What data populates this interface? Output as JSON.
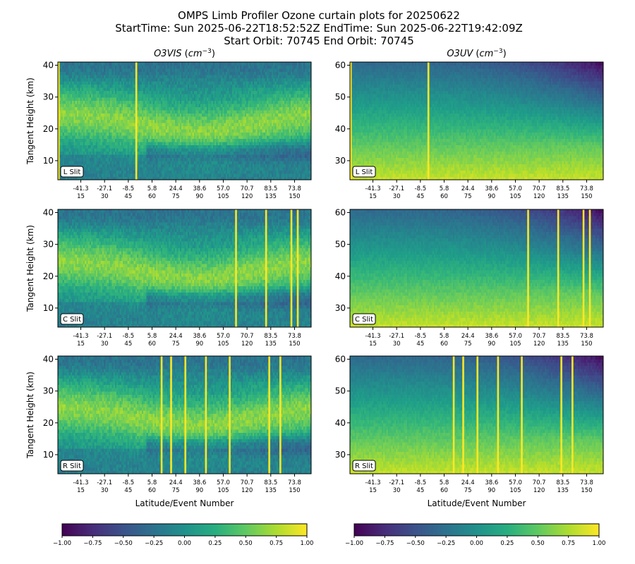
{
  "figure": {
    "title_lines": [
      "OMPS Limb Profiler Ozone curtain plots for 20250622",
      "StartTime: Sun 2025-06-22T18:52:52Z  EndTime: Sun 2025-06-22T19:42:09Z",
      "Start Orbit: 70745 End Orbit: 70745"
    ]
  },
  "colors": {
    "colormap": "viridis",
    "flag": "#fde725",
    "frame": "#000000"
  },
  "chart_data": [
    {
      "type": "heatmap",
      "title_main": "O3VIS",
      "title_unit_base": "cm",
      "title_unit_exp": "−3",
      "slit_label": "L Slit",
      "ylabel": "Tangent Height (km)",
      "xlabel": "",
      "ylim": [
        4,
        41
      ],
      "y_ticks": [
        10,
        20,
        30,
        40
      ],
      "x_ticks_lat": [
        "-41.3",
        "-27.1",
        "-8.5",
        "5.8",
        "24.4",
        "38.6",
        "57.0",
        "70.7",
        "83.5",
        "73.8"
      ],
      "x_ticks_event": [
        "15",
        "30",
        "45",
        "60",
        "75",
        "90",
        "105",
        "120",
        "135",
        "150"
      ],
      "flag_events": [
        1,
        50
      ],
      "crange": [
        -1,
        1
      ]
    },
    {
      "type": "heatmap",
      "title_main": "O3UV",
      "title_unit_base": "cm",
      "title_unit_exp": "−3",
      "slit_label": "L Slit",
      "ylabel": "",
      "xlabel": "",
      "ylim": [
        24,
        61
      ],
      "y_ticks": [
        30,
        40,
        50,
        60
      ],
      "x_ticks_lat": [
        "-41.3",
        "-27.1",
        "-8.5",
        "5.8",
        "24.4",
        "38.6",
        "57.0",
        "70.7",
        "83.5",
        "73.8"
      ],
      "x_ticks_event": [
        "15",
        "30",
        "45",
        "60",
        "75",
        "90",
        "105",
        "120",
        "135",
        "150"
      ],
      "flag_events": [
        1,
        50
      ],
      "crange": [
        -1,
        1
      ]
    },
    {
      "type": "heatmap",
      "title_main": "",
      "slit_label": "C Slit",
      "ylabel": "Tangent Height (km)",
      "xlabel": "",
      "ylim": [
        4,
        41
      ],
      "y_ticks": [
        10,
        20,
        30,
        40
      ],
      "x_ticks_lat": [
        "-41.3",
        "-27.1",
        "-8.5",
        "5.8",
        "24.4",
        "38.6",
        "57.0",
        "70.7",
        "83.5",
        "73.8"
      ],
      "x_ticks_event": [
        "15",
        "30",
        "45",
        "60",
        "75",
        "90",
        "105",
        "120",
        "135",
        "150"
      ],
      "flag_events": [
        113,
        132,
        148,
        152
      ],
      "crange": [
        -1,
        1
      ]
    },
    {
      "type": "heatmap",
      "title_main": "",
      "slit_label": "C Slit",
      "ylabel": "",
      "xlabel": "",
      "ylim": [
        24,
        61
      ],
      "y_ticks": [
        30,
        40,
        50,
        60
      ],
      "x_ticks_lat": [
        "-41.3",
        "-27.1",
        "-8.5",
        "5.8",
        "24.4",
        "38.6",
        "57.0",
        "70.7",
        "83.5",
        "73.8"
      ],
      "x_ticks_event": [
        "15",
        "30",
        "45",
        "60",
        "75",
        "90",
        "105",
        "120",
        "135",
        "150"
      ],
      "flag_events": [
        113,
        132,
        148,
        152
      ],
      "crange": [
        -1,
        1
      ]
    },
    {
      "type": "heatmap",
      "title_main": "",
      "slit_label": "R Slit",
      "ylabel": "Tangent Height (km)",
      "xlabel": "Latitude/Event Number",
      "ylim": [
        4,
        41
      ],
      "y_ticks": [
        10,
        20,
        30,
        40
      ],
      "x_ticks_lat": [
        "-41.3",
        "-27.1",
        "-8.5",
        "5.8",
        "24.4",
        "38.6",
        "57.0",
        "70.7",
        "83.5",
        "73.8"
      ],
      "x_ticks_event": [
        "15",
        "30",
        "45",
        "60",
        "75",
        "90",
        "105",
        "120",
        "135",
        "150"
      ],
      "flag_events": [
        66,
        72,
        81,
        94,
        109,
        134,
        141
      ],
      "crange": [
        -1,
        1
      ]
    },
    {
      "type": "heatmap",
      "title_main": "",
      "slit_label": "R Slit",
      "ylabel": "",
      "xlabel": "Latitude/Event Number",
      "ylim": [
        24,
        61
      ],
      "y_ticks": [
        30,
        40,
        50,
        60
      ],
      "x_ticks_lat": [
        "-41.3",
        "-27.1",
        "-8.5",
        "5.8",
        "24.4",
        "38.6",
        "57.0",
        "70.7",
        "83.5",
        "73.8"
      ],
      "x_ticks_event": [
        "15",
        "30",
        "45",
        "60",
        "75",
        "90",
        "105",
        "120",
        "135",
        "150"
      ],
      "flag_events": [
        66,
        72,
        81,
        94,
        109,
        134,
        141
      ],
      "crange": [
        -1,
        1
      ]
    }
  ],
  "colorbars": [
    {
      "ticks": [
        "−1.00",
        "−0.75",
        "−0.50",
        "−0.25",
        "0.00",
        "0.25",
        "0.50",
        "0.75",
        "1.00"
      ]
    },
    {
      "ticks": [
        "−1.00",
        "−0.75",
        "−0.50",
        "−0.25",
        "0.00",
        "0.25",
        "0.50",
        "0.75",
        "1.00"
      ]
    }
  ]
}
